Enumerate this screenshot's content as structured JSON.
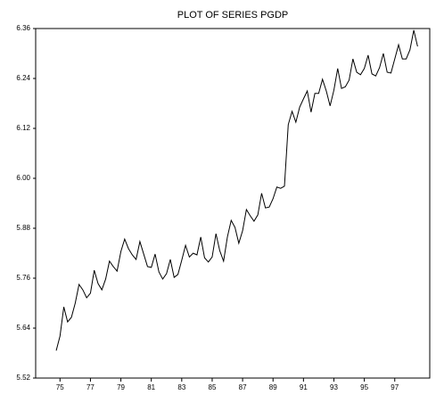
{
  "chart_data": {
    "type": "line",
    "title": "PLOT OF SERIES PGDP",
    "x": [
      1974.75,
      1975,
      1975.25,
      1975.5,
      1975.75,
      1976,
      1976.25,
      1976.5,
      1976.75,
      1977,
      1977.25,
      1977.5,
      1977.75,
      1978,
      1978.25,
      1978.5,
      1978.75,
      1979,
      1979.25,
      1979.5,
      1979.75,
      1980,
      1980.25,
      1980.5,
      1980.75,
      1981,
      1981.25,
      1981.5,
      1981.75,
      1982,
      1982.25,
      1982.5,
      1982.75,
      1983,
      1983.25,
      1983.5,
      1983.75,
      1984,
      1984.25,
      1984.5,
      1984.75,
      1985,
      1985.25,
      1985.5,
      1985.75,
      1986,
      1986.25,
      1986.5,
      1986.75,
      1987,
      1987.25,
      1987.5,
      1987.75,
      1988,
      1988.25,
      1988.5,
      1988.75,
      1989,
      1989.25,
      1989.5,
      1989.75,
      1990,
      1990.25,
      1990.5,
      1990.75,
      1991,
      1991.25,
      1991.5,
      1991.75,
      1992,
      1992.25,
      1992.5,
      1992.75,
      1993,
      1993.25,
      1993.5,
      1993.75,
      1994,
      1994.25,
      1994.5,
      1994.75,
      1995,
      1995.25,
      1995.5,
      1995.75,
      1996,
      1996.25,
      1996.5,
      1996.75,
      1997,
      1997.25,
      1997.5,
      1997.75,
      1998,
      1998.25,
      1998.5
    ],
    "series": [
      {
        "name": "PGDP",
        "color": "#000000",
        "values": [
          5.586,
          5.621,
          5.691,
          5.655,
          5.666,
          5.7,
          5.745,
          5.732,
          5.713,
          5.724,
          5.779,
          5.747,
          5.732,
          5.758,
          5.801,
          5.788,
          5.777,
          5.824,
          5.854,
          5.831,
          5.816,
          5.805,
          5.848,
          5.818,
          5.788,
          5.786,
          5.818,
          5.775,
          5.758,
          5.771,
          5.805,
          5.762,
          5.769,
          5.803,
          5.839,
          5.811,
          5.82,
          5.816,
          5.859,
          5.809,
          5.799,
          5.811,
          5.867,
          5.826,
          5.801,
          5.859,
          5.899,
          5.882,
          5.844,
          5.874,
          5.925,
          5.91,
          5.897,
          5.912,
          5.964,
          5.929,
          5.931,
          5.951,
          5.979,
          5.976,
          5.981,
          6.129,
          6.161,
          6.135,
          6.171,
          6.191,
          6.21,
          6.159,
          6.204,
          6.204,
          6.238,
          6.21,
          6.174,
          6.212,
          6.264,
          6.216,
          6.22,
          6.236,
          6.287,
          6.255,
          6.249,
          6.264,
          6.296,
          6.251,
          6.246,
          6.266,
          6.3,
          6.255,
          6.253,
          6.287,
          6.321,
          6.287,
          6.287,
          6.309,
          6.356,
          6.317
        ]
      }
    ],
    "xlim": [
      1973.4,
      1999.3
    ],
    "ylim": [
      5.52,
      6.36
    ],
    "xticks": [
      {
        "value": 1975,
        "label": "75"
      },
      {
        "value": 1977,
        "label": "77"
      },
      {
        "value": 1979,
        "label": "79"
      },
      {
        "value": 1981,
        "label": "81"
      },
      {
        "value": 1983,
        "label": "83"
      },
      {
        "value": 1985,
        "label": "85"
      },
      {
        "value": 1987,
        "label": "87"
      },
      {
        "value": 1989,
        "label": "89"
      },
      {
        "value": 1991,
        "label": "91"
      },
      {
        "value": 1993,
        "label": "93"
      },
      {
        "value": 1995,
        "label": "95"
      },
      {
        "value": 1997,
        "label": "97"
      }
    ],
    "yticks": [
      5.52,
      5.64,
      5.76,
      5.88,
      {
        "value": 6,
        "label": "6.00"
      },
      6.12,
      6.24,
      6.36
    ]
  }
}
